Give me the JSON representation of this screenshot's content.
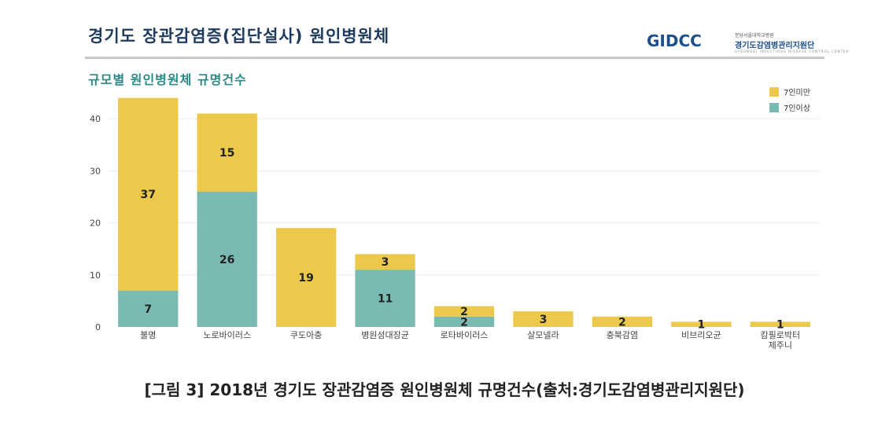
{
  "header": {
    "title": "경기도 장관감염증(집단설사) 원인병원체",
    "logo_text": "GIDCC",
    "logo_sub1": "분당서울대학교병원",
    "logo_sub2": "경기도감염병관리지원단",
    "logo_sub3": "GYEONGGI INFECTIOUS DISEASE CONTROL CENTER"
  },
  "caption": "[그림 3] 2018년 경기도 장관감염증 원인병원체 규명건수(출처:경기도감염병관리지원단)",
  "colors": {
    "under7": "#ecc94b",
    "over7": "#7bbab3"
  },
  "chart_data": {
    "type": "bar",
    "stacked": true,
    "title": "규모별 원인병원체 규명건수",
    "categories": [
      "불명",
      "노로바이러스",
      "쿠도아충",
      "병원성대장균",
      "로타바이러스",
      "살모넬라",
      "충북감염",
      "비브리오균",
      "캄필로박터 제주니"
    ],
    "series": [
      {
        "name": "7인이상",
        "values": [
          7,
          26,
          0,
          11,
          2,
          0,
          0,
          0,
          0
        ]
      },
      {
        "name": "7인미만",
        "values": [
          37,
          15,
          19,
          3,
          2,
          3,
          2,
          1,
          1
        ]
      }
    ],
    "yticks": [
      0,
      10,
      20,
      30,
      40
    ],
    "ylim": [
      0,
      45
    ],
    "legend": "top-right",
    "legend_entries": [
      "7인미만",
      "7인이상"
    ],
    "grid": true
  }
}
